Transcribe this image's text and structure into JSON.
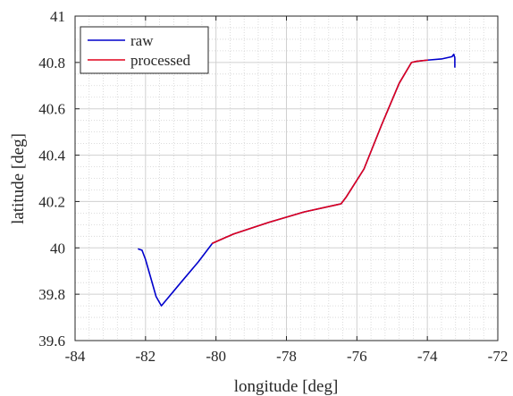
{
  "chart_data": {
    "type": "line",
    "xlabel": "longitude [deg]",
    "ylabel": "latitude [deg]",
    "xlim": [
      -84,
      -72
    ],
    "ylim": [
      39.6,
      41
    ],
    "xticks": [
      -84,
      -82,
      -80,
      -78,
      -76,
      -74,
      -72
    ],
    "yticks": [
      39.6,
      39.8,
      40,
      40.2,
      40.4,
      40.6,
      40.8,
      41
    ],
    "xtick_labels": [
      "-84",
      "-82",
      "-80",
      "-78",
      "-76",
      "-74",
      "-72"
    ],
    "ytick_labels": [
      "39.6",
      "39.8",
      "40",
      "40.2",
      "40.4",
      "40.6",
      "40.8",
      "41"
    ],
    "grid": true,
    "minor_grid": true,
    "legend_position": "top-left",
    "series": [
      {
        "name": "raw",
        "color": "#0000cc",
        "x": [
          -82.2,
          -82.1,
          -82.0,
          -81.85,
          -81.7,
          -81.55,
          -81.0,
          -80.5,
          -80.1,
          -79.5,
          -78.5,
          -77.5,
          -76.6,
          -76.45,
          -76.3,
          -75.8,
          -75.3,
          -74.8,
          -74.45,
          -74.3,
          -74.0,
          -73.6,
          -73.3,
          -73.25,
          -73.22,
          -73.22
        ],
        "y": [
          39.995,
          39.99,
          39.95,
          39.87,
          39.79,
          39.75,
          39.85,
          39.94,
          40.02,
          40.06,
          40.11,
          40.155,
          40.185,
          40.19,
          40.22,
          40.34,
          40.53,
          40.71,
          40.8,
          40.805,
          40.81,
          40.815,
          40.825,
          40.835,
          40.82,
          40.78
        ]
      },
      {
        "name": "processed",
        "color": "#e0001b",
        "x": [
          -80.1,
          -79.5,
          -78.5,
          -77.5,
          -76.6,
          -76.45,
          -76.3,
          -75.8,
          -75.3,
          -74.8,
          -74.45,
          -74.3,
          -74.0
        ],
        "y": [
          40.02,
          40.06,
          40.11,
          40.155,
          40.185,
          40.19,
          40.22,
          40.34,
          40.53,
          40.71,
          40.8,
          40.805,
          40.81
        ]
      }
    ]
  }
}
